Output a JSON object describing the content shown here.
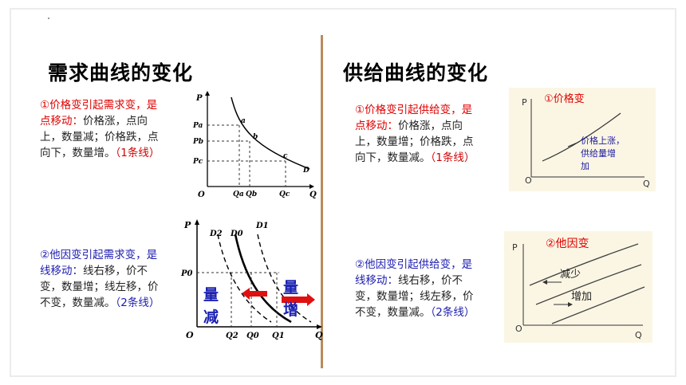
{
  "left": {
    "title": "需求曲线的变化",
    "p1_head": "①价格变引起需求变，是点移动：",
    "p1_body": "价格涨，点向上，数量减；价格跌，点向下，数量增。",
    "p1_tail": "（1条线）",
    "p2_head": "②他因变引起需求变，是线移动：",
    "p2_body": "线右移，价不变，数量增；线左移，价不变，数量减。",
    "p2_tail": "（2条线）",
    "g1": {
      "p": "P",
      "o": "O",
      "q": "Q",
      "pa": "Pa",
      "pb": "Pb",
      "pc": "Pc",
      "qa": "Qa",
      "qb": "Qb",
      "qc": "Qc",
      "a": "a",
      "b": "b",
      "c": "c",
      "d": "D"
    },
    "g2": {
      "p": "P",
      "o": "O",
      "q": "Q",
      "d2": "D2",
      "d0": "D0",
      "d1": "D1",
      "p0": "P0",
      "q2": "Q2",
      "q0": "Q0",
      "q1": "Q1",
      "jian_1": "量",
      "jian_2": "减",
      "zeng_1": "量",
      "zeng_2": "增"
    }
  },
  "right": {
    "title": "供给曲线的变化",
    "p1_head": "①价格变引起供给变，是点移动：",
    "p1_body": "价格涨，点向上，数量增；价格跌，点向下，数量减。",
    "p1_tail": "（1条线）",
    "p2_head": "②他因变引起供给变，是线移动：",
    "p2_body": "线右移，价不变，数量增；线左移，价不变，数量减。",
    "p2_tail": "（2条线）",
    "g3": {
      "p": "P",
      "o": "O",
      "q": "Q",
      "label": "①价格变",
      "note_1": "价格上涨，",
      "note_2": "供给量增",
      "note_3": "加"
    },
    "g4": {
      "p": "P",
      "o": "O",
      "q": "Q",
      "label": "②他因变",
      "dec": "减少",
      "inc": "增加"
    }
  }
}
